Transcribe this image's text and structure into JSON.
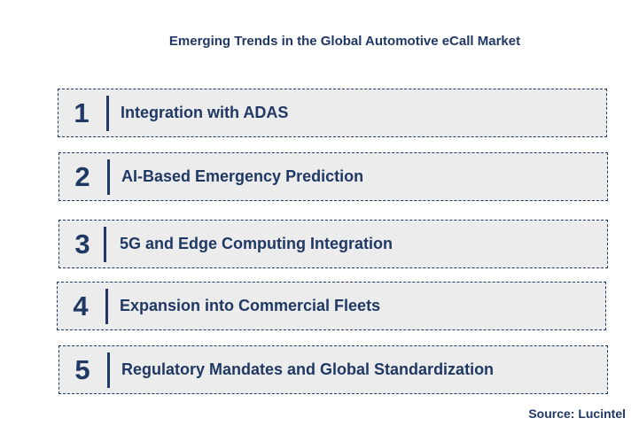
{
  "title": "Emerging Trends in the Global Automotive eCall Market",
  "trends": [
    {
      "number": "1",
      "label": "Integration with ADAS"
    },
    {
      "number": "2",
      "label": "AI-Based Emergency Prediction"
    },
    {
      "number": "3",
      "label": "5G and Edge Computing Integration"
    },
    {
      "number": "4",
      "label": "Expansion into Commercial Fleets"
    },
    {
      "number": "5",
      "label": "Regulatory Mandates and Global Standardization"
    }
  ],
  "source": "Source: Lucintel",
  "colors": {
    "text": "#1f3864",
    "box_fill": "#ececec",
    "box_border": "#1f3864"
  }
}
